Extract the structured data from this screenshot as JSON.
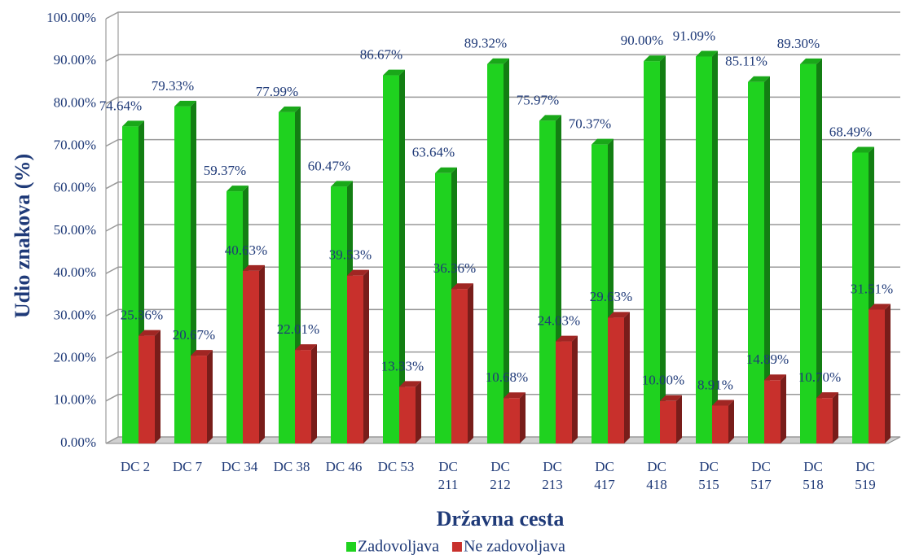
{
  "chart_data": {
    "type": "bar",
    "x_label": "Državna cesta",
    "y_label": "Udio znakova (%)",
    "categories": [
      "DC 2",
      "DC 7",
      "DC 34",
      "DC 38",
      "DC 46",
      "DC 53",
      "DC 211",
      "DC 212",
      "DC 213",
      "DC 417",
      "DC 418",
      "DC 515",
      "DC 517",
      "DC 518",
      "DC 519"
    ],
    "series": [
      {
        "name": "Zadovoljava",
        "color": "#1fd21f",
        "values": [
          74.64,
          79.33,
          59.37,
          77.99,
          60.47,
          86.67,
          63.64,
          89.32,
          75.97,
          70.37,
          90.0,
          91.09,
          85.11,
          89.3,
          68.49
        ],
        "value_labels": [
          "74.64%",
          "79.33%",
          "59.37%",
          "77.99%",
          "60.47%",
          "86.67%",
          "63.64%",
          "89.32%",
          "75.97%",
          "70.37%",
          "90.00%",
          "91.09%",
          "85.11%",
          "89.30%",
          "68.49%"
        ]
      },
      {
        "name": "Ne zadovoljava",
        "color": "#c8302c",
        "values": [
          25.36,
          20.67,
          40.63,
          22.01,
          39.53,
          13.33,
          36.36,
          10.68,
          24.03,
          29.63,
          10.0,
          8.91,
          14.89,
          10.7,
          31.51
        ],
        "value_labels": [
          "25.36%",
          "20.67%",
          "40.63%",
          "22.01%",
          "39.53%",
          "13.33%",
          "36.36%",
          "10.68%",
          "24.03%",
          "29.63%",
          "10.00%",
          "8.91%",
          "14.89%",
          "10.70%",
          "31.51%"
        ]
      }
    ],
    "ylim": [
      0,
      100
    ],
    "yticks": [
      {
        "value": 0,
        "label": "0.00%"
      },
      {
        "value": 10,
        "label": "10.00%"
      },
      {
        "value": 20,
        "label": "20.00%"
      },
      {
        "value": 30,
        "label": "30.00%"
      },
      {
        "value": 40,
        "label": "40.00%"
      },
      {
        "value": 50,
        "label": "50.00%"
      },
      {
        "value": 60,
        "label": "60.00%"
      },
      {
        "value": 70,
        "label": "70.00%"
      },
      {
        "value": 80,
        "label": "80.00%"
      },
      {
        "value": 90,
        "label": "90.00%"
      },
      {
        "value": 100,
        "label": "100.00%"
      }
    ],
    "grid": true,
    "legend": "bottom"
  }
}
